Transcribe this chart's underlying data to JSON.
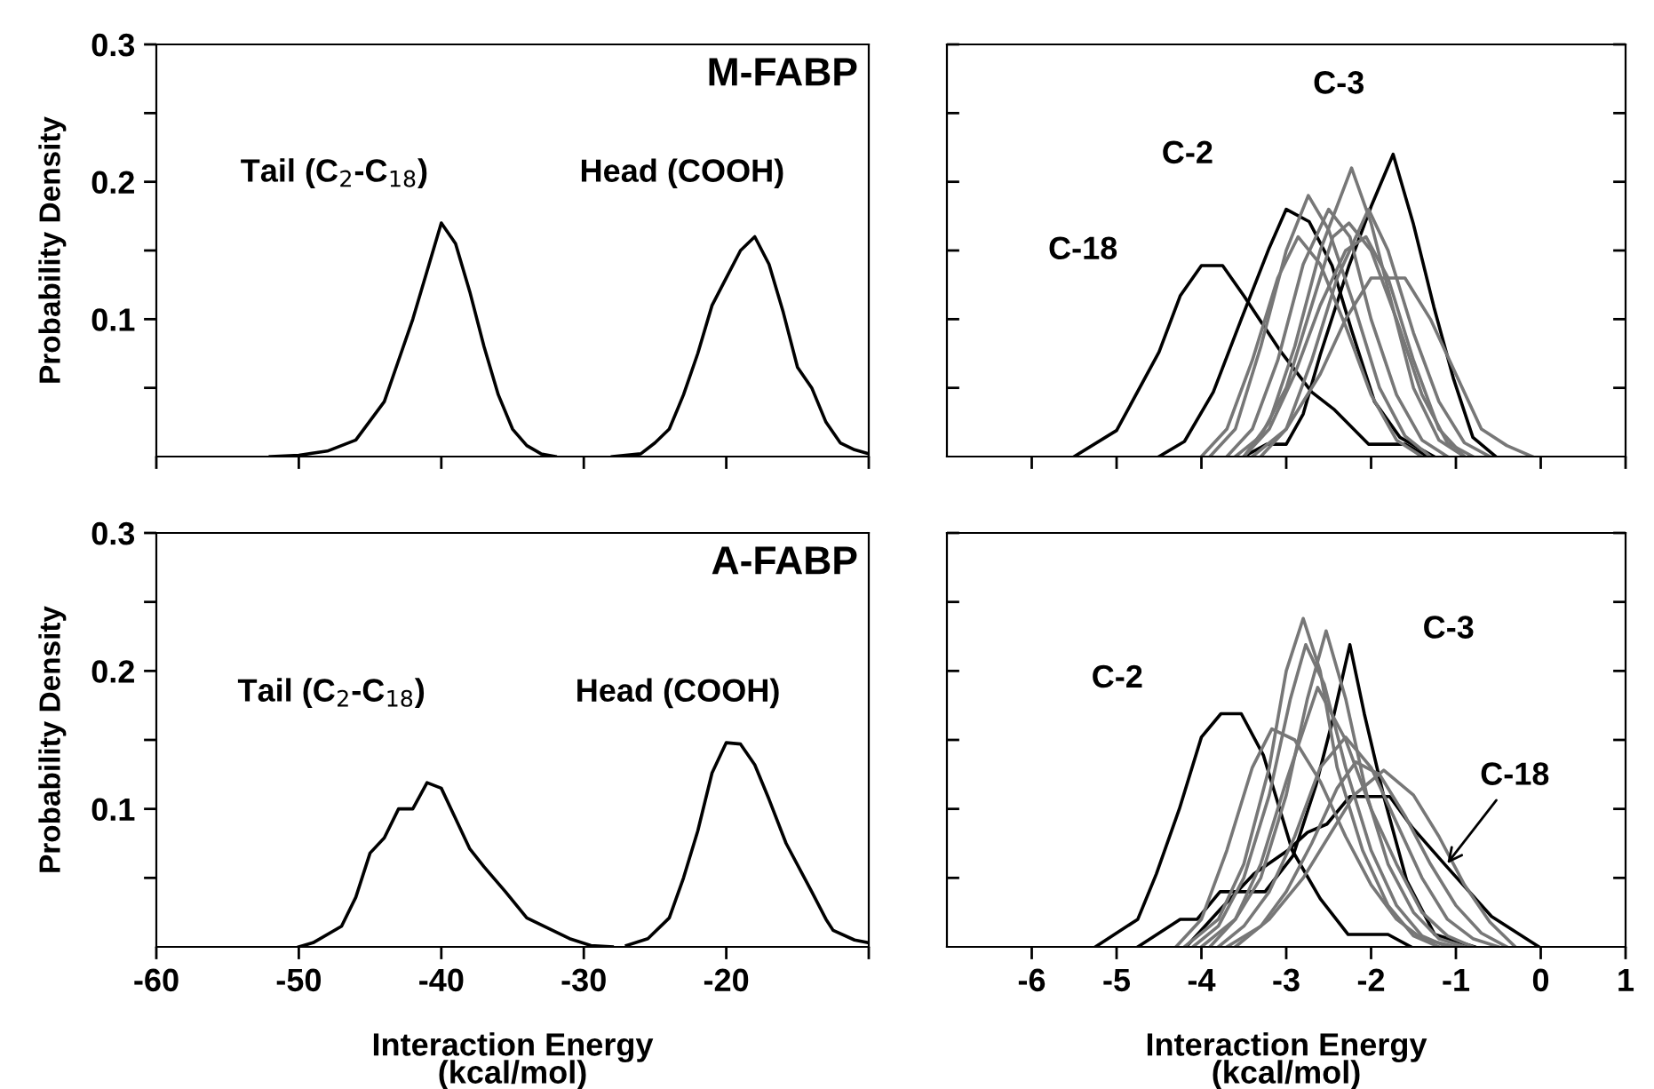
{
  "chart_data": [
    {
      "type": "line",
      "title": "M-FABP",
      "ylabel": "Probability Density",
      "xlim": [
        -60,
        -10
      ],
      "xticks": [
        -60,
        -50,
        -40,
        -30,
        -20,
        {
          "value": -10,
          "label": null
        }
      ],
      "ylim": [
        0,
        0.3
      ],
      "yticks": [
        {
          "value": 0.05,
          "label": null
        },
        0.1,
        {
          "value": 0.15,
          "label": null
        },
        0.2,
        {
          "value": 0.25,
          "label": null
        },
        0.3
      ],
      "tick_labels": "y",
      "grid": false,
      "legend": false,
      "marker": "none",
      "line_style": "solid",
      "annotations": [
        "Tail (C$_{2}$-C$_{18}$)",
        "Head (COOH)"
      ],
      "series": [
        {
          "color": "#000000",
          "x": [
            -52,
            -50,
            -48,
            -46,
            -44,
            -43,
            -42,
            -41,
            -40,
            -39,
            -38,
            -37,
            -36,
            -35,
            -34,
            -33,
            -32
          ],
          "values": [
            0,
            0.001,
            0.004,
            0.012,
            0.04,
            0.07,
            0.1,
            0.135,
            0.17,
            0.155,
            0.12,
            0.08,
            0.045,
            0.02,
            0.008,
            0.002,
            0
          ]
        },
        {
          "color": "#000000",
          "x": [
            -28,
            -26,
            -25,
            -24,
            -23,
            -22,
            -21,
            -20,
            -19,
            -18,
            -17,
            -16,
            -15,
            -14,
            -13,
            -12,
            -11,
            -10
          ],
          "values": [
            0,
            0.002,
            0.01,
            0.02,
            0.045,
            0.075,
            0.11,
            0.13,
            0.15,
            0.16,
            0.14,
            0.105,
            0.065,
            0.05,
            0.025,
            0.01,
            0.005,
            0.002
          ]
        }
      ]
    },
    {
      "type": "line",
      "xlim": [
        -7,
        1
      ],
      "xticks": [
        -6,
        -5,
        -4,
        -3,
        -2,
        -1,
        0,
        1
      ],
      "ylim": [
        0,
        0.3
      ],
      "yticks": [
        0.05,
        0.1,
        0.15,
        0.2,
        0.25,
        0.3
      ],
      "tick_labels": false,
      "grid": false,
      "legend": false,
      "marker": "none",
      "line_style": "solid",
      "series": [
        {
          "name": "C-18",
          "color": "#000000",
          "x": [
            -5.5,
            -5.0,
            -4.5,
            -4.25,
            -4.0,
            -3.75,
            -3.5,
            -3.06,
            -2.7,
            -2.43,
            -2.03,
            -1.6,
            -1.33
          ],
          "values": [
            0,
            0.019,
            0.076,
            0.117,
            0.139,
            0.139,
            0.117,
            0.076,
            0.047,
            0.034,
            0.009,
            0.009,
            0
          ]
        },
        {
          "name": "C-2",
          "color": "#000000",
          "x": [
            -4.5,
            -4.2,
            -3.86,
            -3.53,
            -3.2,
            -3.0,
            -2.73,
            -2.46,
            -2.23,
            -1.96,
            -1.66,
            -1.26
          ],
          "values": [
            0,
            0.011,
            0.047,
            0.1,
            0.152,
            0.18,
            0.171,
            0.139,
            0.092,
            0.04,
            0.014,
            0
          ]
        },
        {
          "name": "C-3",
          "color": "#000000",
          "x": [
            -3.5,
            -3.23,
            -3.0,
            -2.8,
            -2.6,
            -2.26,
            -2.0,
            -1.74,
            -1.5,
            -1.26,
            -1.03,
            -0.8,
            -0.53
          ],
          "values": [
            0,
            0.009,
            0.009,
            0.031,
            0.074,
            0.139,
            0.182,
            0.22,
            0.169,
            0.109,
            0.057,
            0.014,
            0
          ]
        },
        {
          "color": "#777777",
          "x": [
            -3.9,
            -3.6,
            -3.3,
            -3.0,
            -2.74,
            -2.5,
            -2.2,
            -1.9,
            -1.6,
            -1.3
          ],
          "values": [
            0,
            0.02,
            0.08,
            0.15,
            0.19,
            0.165,
            0.11,
            0.05,
            0.015,
            0
          ]
        },
        {
          "color": "#777777",
          "x": [
            -3.7,
            -3.4,
            -3.1,
            -2.8,
            -2.5,
            -2.25,
            -2.0,
            -1.7,
            -1.4,
            -1.1
          ],
          "values": [
            0,
            0.02,
            0.07,
            0.14,
            0.18,
            0.16,
            0.1,
            0.045,
            0.012,
            0
          ]
        },
        {
          "color": "#777777",
          "x": [
            -3.5,
            -3.2,
            -2.9,
            -2.6,
            -2.23,
            -2.0,
            -1.75,
            -1.5,
            -1.2,
            -0.9
          ],
          "values": [
            0,
            0.025,
            0.08,
            0.15,
            0.21,
            0.17,
            0.11,
            0.05,
            0.012,
            0
          ]
        },
        {
          "color": "#777777",
          "x": [
            -3.3,
            -3.0,
            -2.7,
            -2.4,
            -2.03,
            -1.8,
            -1.5,
            -1.2,
            -0.9,
            -0.6
          ],
          "values": [
            0,
            0.02,
            0.07,
            0.13,
            0.18,
            0.15,
            0.09,
            0.04,
            0.01,
            0
          ]
        },
        {
          "color": "#777777",
          "x": [
            -4.0,
            -3.7,
            -3.4,
            -3.1,
            -2.86,
            -2.6,
            -2.3,
            -2.0,
            -1.7,
            -1.4
          ],
          "values": [
            0,
            0.02,
            0.07,
            0.13,
            0.16,
            0.14,
            0.095,
            0.045,
            0.012,
            0
          ]
        },
        {
          "color": "#777777",
          "x": [
            -3.6,
            -3.3,
            -3.0,
            -2.7,
            -2.45,
            -2.26,
            -2.0,
            -1.7,
            -1.4,
            -1.1,
            -0.8
          ],
          "values": [
            0,
            0.015,
            0.05,
            0.11,
            0.16,
            0.17,
            0.15,
            0.1,
            0.045,
            0.01,
            0
          ]
        },
        {
          "color": "#777777",
          "x": [
            -3.4,
            -3.0,
            -2.6,
            -2.3,
            -2.0,
            -1.6,
            -1.3,
            -1.0,
            -0.7,
            -0.4,
            -0.1
          ],
          "values": [
            0,
            0.02,
            0.06,
            0.1,
            0.13,
            0.13,
            0.1,
            0.06,
            0.02,
            0.008,
            0
          ]
        },
        {
          "color": "#777777",
          "x": [
            -3.5,
            -3.2,
            -2.9,
            -2.6,
            -2.3,
            -2.06,
            -1.8,
            -1.5,
            -1.2,
            -0.9
          ],
          "values": [
            0,
            0.02,
            0.06,
            0.11,
            0.15,
            0.16,
            0.13,
            0.07,
            0.02,
            0
          ]
        }
      ]
    },
    {
      "type": "line",
      "title": "A-FABP",
      "ylabel": "Probability Density",
      "xlabel": "Interaction Energy\n(kcal/mol)",
      "xlim": [
        -60,
        -10
      ],
      "xticks": [
        -60,
        -50,
        -40,
        -30,
        -20,
        {
          "value": -10,
          "label": null
        }
      ],
      "ylim": [
        0,
        0.3
      ],
      "yticks": [
        {
          "value": 0.05,
          "label": null
        },
        0.1,
        {
          "value": 0.15,
          "label": null
        },
        0.2,
        {
          "value": 0.25,
          "label": null
        },
        0.3
      ],
      "grid": false,
      "legend": false,
      "marker": "none",
      "line_style": "solid",
      "annotations": [
        "Tail (C$_{2}$-C$_{18}$)",
        "Head (COOH)"
      ],
      "series": [
        {
          "color": "#000000",
          "x": [
            -50,
            -49,
            -47,
            -46,
            -45,
            -44,
            -43,
            -42,
            -41,
            -40,
            -39,
            -38,
            -37,
            -35.5,
            -34,
            -31,
            -29.5,
            -28
          ],
          "values": [
            0,
            0.003,
            0.015,
            0.036,
            0.068,
            0.079,
            0.1,
            0.1,
            0.119,
            0.115,
            0.093,
            0.071,
            0.058,
            0.04,
            0.021,
            0.006,
            0.001,
            0
          ]
        },
        {
          "color": "#000000",
          "x": [
            -27,
            -25.5,
            -24,
            -23,
            -22,
            -21,
            -20,
            -19,
            -18,
            -17,
            -15.8,
            -14,
            -13,
            -12.5,
            -11,
            -10
          ],
          "values": [
            0.001,
            0.006,
            0.021,
            0.05,
            0.084,
            0.126,
            0.148,
            0.147,
            0.132,
            0.107,
            0.075,
            0.04,
            0.02,
            0.012,
            0.005,
            0.003
          ]
        }
      ]
    },
    {
      "type": "line",
      "xlabel": "Interaction Energy\n(kcal/mol)",
      "xlim": [
        -7,
        1
      ],
      "xticks": [
        -6,
        -5,
        -4,
        -3,
        -2,
        -1,
        0,
        1
      ],
      "ylim": [
        0,
        0.3
      ],
      "yticks": [
        0.05,
        0.1,
        0.15,
        0.2,
        0.25,
        0.3
      ],
      "tick_labels": "x",
      "grid": false,
      "legend": false,
      "marker": "none",
      "line_style": "solid",
      "series": [
        {
          "name": "C-2",
          "color": "#000000",
          "x": [
            -5.25,
            -4.75,
            -4.53,
            -4.26,
            -4.0,
            -3.77,
            -3.53,
            -3.27,
            -2.93,
            -2.6,
            -2.27,
            -1.8,
            -1.53
          ],
          "values": [
            0,
            0.02,
            0.053,
            0.1,
            0.152,
            0.169,
            0.169,
            0.139,
            0.07,
            0.035,
            0.009,
            0.009,
            0
          ]
        },
        {
          "name": "C-3",
          "color": "#000000",
          "x": [
            -4.75,
            -4.25,
            -4.05,
            -3.78,
            -3.25,
            -2.92,
            -2.65,
            -2.45,
            -2.25,
            -2.08,
            -1.85,
            -1.58,
            -1.25,
            -0.78
          ],
          "values": [
            0,
            0.02,
            0.02,
            0.04,
            0.04,
            0.066,
            0.117,
            0.165,
            0.219,
            0.169,
            0.109,
            0.048,
            0.009,
            0
          ]
        },
        {
          "name": "C-18",
          "color": "#000000",
          "x": [
            -4.18,
            -3.78,
            -3.38,
            -2.98,
            -2.75,
            -2.52,
            -2.25,
            -1.78,
            -1.52,
            -1.12,
            -0.58,
            -0.02
          ],
          "values": [
            0,
            0.027,
            0.053,
            0.07,
            0.083,
            0.089,
            0.109,
            0.109,
            0.087,
            0.059,
            0.022,
            0
          ]
        },
        {
          "color": "#777777",
          "x": [
            -4.2,
            -3.8,
            -3.5,
            -3.2,
            -3.0,
            -2.8,
            -2.6,
            -2.4,
            -2.1,
            -1.8,
            -1.5,
            -1.2
          ],
          "values": [
            0,
            0.02,
            0.06,
            0.13,
            0.2,
            0.238,
            0.2,
            0.13,
            0.07,
            0.03,
            0.008,
            0
          ]
        },
        {
          "color": "#777777",
          "x": [
            -3.9,
            -3.6,
            -3.3,
            -3.0,
            -2.75,
            -2.53,
            -2.3,
            -2.05,
            -1.8,
            -1.5,
            -1.2,
            -0.9
          ],
          "values": [
            0,
            0.02,
            0.05,
            0.11,
            0.18,
            0.229,
            0.18,
            0.11,
            0.06,
            0.025,
            0.006,
            0
          ]
        },
        {
          "color": "#777777",
          "x": [
            -4.0,
            -3.6,
            -3.3,
            -3.0,
            -2.63,
            -2.3,
            -2.0,
            -1.7,
            -1.4,
            -1.1,
            -0.8
          ],
          "values": [
            0,
            0.02,
            0.06,
            0.12,
            0.188,
            0.15,
            0.1,
            0.06,
            0.025,
            0.008,
            0
          ]
        },
        {
          "color": "#777777",
          "x": [
            -4.3,
            -4.0,
            -3.7,
            -3.4,
            -3.17,
            -2.9,
            -2.6,
            -2.3,
            -2.0,
            -1.7,
            -1.4,
            -1.0
          ],
          "values": [
            0,
            0.02,
            0.07,
            0.13,
            0.158,
            0.15,
            0.12,
            0.08,
            0.045,
            0.02,
            0.006,
            0
          ]
        },
        {
          "color": "#777777",
          "x": [
            -4.1,
            -3.8,
            -3.5,
            -3.2,
            -2.95,
            -2.77,
            -2.55,
            -2.3,
            -2.0,
            -1.7,
            -1.4,
            -1.1
          ],
          "values": [
            0,
            0.015,
            0.05,
            0.11,
            0.18,
            0.219,
            0.19,
            0.13,
            0.07,
            0.03,
            0.008,
            0
          ]
        },
        {
          "color": "#777777",
          "x": [
            -3.6,
            -3.2,
            -2.8,
            -2.5,
            -2.2,
            -1.85,
            -1.5,
            -1.2,
            -0.9,
            -0.6,
            -0.3
          ],
          "values": [
            0,
            0.02,
            0.05,
            0.08,
            0.11,
            0.128,
            0.11,
            0.08,
            0.045,
            0.018,
            0
          ]
        },
        {
          "color": "#777777",
          "x": [
            -3.8,
            -3.5,
            -3.2,
            -2.9,
            -2.6,
            -2.3,
            -2.0,
            -1.7,
            -1.4,
            -1.1,
            -0.8,
            -0.5
          ],
          "values": [
            0,
            0.015,
            0.04,
            0.08,
            0.13,
            0.152,
            0.13,
            0.09,
            0.05,
            0.02,
            0.006,
            0
          ]
        },
        {
          "color": "#777777",
          "x": [
            -3.7,
            -3.3,
            -3.0,
            -2.7,
            -2.4,
            -2.18,
            -1.9,
            -1.6,
            -1.3,
            -1.0,
            -0.7,
            -0.4
          ],
          "values": [
            0,
            0.015,
            0.04,
            0.075,
            0.115,
            0.134,
            0.125,
            0.095,
            0.06,
            0.03,
            0.01,
            0
          ]
        }
      ]
    }
  ]
}
